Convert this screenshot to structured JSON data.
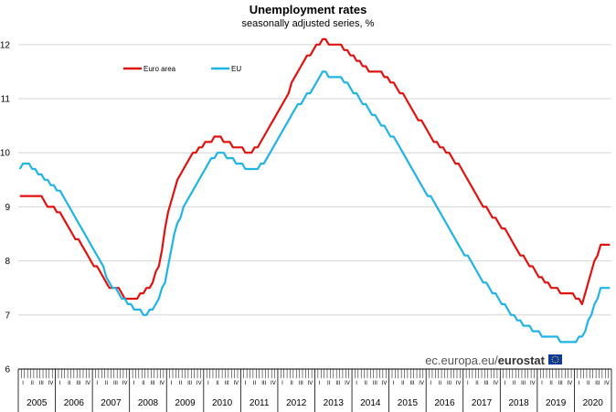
{
  "chart_data": {
    "type": "line",
    "title": "Unemployment rates",
    "subtitle": "seasonally adjusted series, %",
    "source": "ec.europa.eu/eurostat",
    "source_prefix": "ec.europa.eu/",
    "source_brand": "eurostat",
    "x_start": "2005-01",
    "frequency": "monthly",
    "ylim": [
      6,
      12.2
    ],
    "yticks": [
      6,
      7,
      8,
      9,
      10,
      11,
      12
    ],
    "years": [
      "2005",
      "2006",
      "2007",
      "2008",
      "2009",
      "2010",
      "2011",
      "2012",
      "2013",
      "2014",
      "2015",
      "2016",
      "2017",
      "2018",
      "2019",
      "2020"
    ],
    "quarter_labels": [
      "I",
      "II",
      "III",
      "IV"
    ],
    "grid": true,
    "legend_placement": "top-left",
    "series": [
      {
        "name": "Euro area",
        "color": "#e0120f",
        "keypoints": [
          [
            "2005-01",
            9.2
          ],
          [
            "2005-08",
            9.2
          ],
          [
            "2005-10",
            9.0
          ],
          [
            "2005-12",
            9.0
          ],
          [
            "2006-03",
            8.8
          ],
          [
            "2006-07",
            8.4
          ],
          [
            "2006-09",
            8.3
          ],
          [
            "2006-12",
            8.0
          ],
          [
            "2007-03",
            7.8
          ],
          [
            "2007-06",
            7.5
          ],
          [
            "2007-09",
            7.5
          ],
          [
            "2007-11",
            7.3
          ],
          [
            "2008-03",
            7.3
          ],
          [
            "2008-07",
            7.5
          ],
          [
            "2008-10",
            7.9
          ],
          [
            "2009-01",
            8.9
          ],
          [
            "2009-04",
            9.5
          ],
          [
            "2009-08",
            9.9
          ],
          [
            "2009-11",
            10.1
          ],
          [
            "2010-02",
            10.2
          ],
          [
            "2010-05",
            10.3
          ],
          [
            "2010-08",
            10.2
          ],
          [
            "2010-12",
            10.1
          ],
          [
            "2011-03",
            10.0
          ],
          [
            "2011-06",
            10.1
          ],
          [
            "2011-09",
            10.4
          ],
          [
            "2011-12",
            10.7
          ],
          [
            "2012-03",
            11.0
          ],
          [
            "2012-06",
            11.4
          ],
          [
            "2012-09",
            11.7
          ],
          [
            "2012-12",
            11.9
          ],
          [
            "2013-03",
            12.1
          ],
          [
            "2013-06",
            12.0
          ],
          [
            "2013-09",
            12.0
          ],
          [
            "2013-12",
            11.8
          ],
          [
            "2014-03",
            11.7
          ],
          [
            "2014-06",
            11.5
          ],
          [
            "2014-09",
            11.5
          ],
          [
            "2014-12",
            11.4
          ],
          [
            "2015-03",
            11.2
          ],
          [
            "2015-06",
            11.0
          ],
          [
            "2015-09",
            10.7
          ],
          [
            "2015-12",
            10.5
          ],
          [
            "2016-03",
            10.2
          ],
          [
            "2016-06",
            10.1
          ],
          [
            "2016-09",
            9.9
          ],
          [
            "2016-12",
            9.7
          ],
          [
            "2017-03",
            9.4
          ],
          [
            "2017-06",
            9.1
          ],
          [
            "2017-09",
            8.9
          ],
          [
            "2017-12",
            8.7
          ],
          [
            "2018-03",
            8.5
          ],
          [
            "2018-06",
            8.2
          ],
          [
            "2018-09",
            8.0
          ],
          [
            "2018-12",
            7.8
          ],
          [
            "2019-03",
            7.6
          ],
          [
            "2019-06",
            7.5
          ],
          [
            "2019-09",
            7.4
          ],
          [
            "2019-12",
            7.4
          ],
          [
            "2020-03",
            7.2
          ],
          [
            "2020-06",
            7.8
          ],
          [
            "2020-09",
            8.3
          ],
          [
            "2020-12",
            8.3
          ]
        ]
      },
      {
        "name": "EU",
        "color": "#1fb3e6",
        "keypoints": [
          [
            "2005-01",
            9.7
          ],
          [
            "2005-03",
            9.8
          ],
          [
            "2005-06",
            9.7
          ],
          [
            "2005-09",
            9.5
          ],
          [
            "2005-12",
            9.4
          ],
          [
            "2006-03",
            9.2
          ],
          [
            "2006-06",
            8.9
          ],
          [
            "2006-09",
            8.6
          ],
          [
            "2006-12",
            8.3
          ],
          [
            "2007-03",
            8.0
          ],
          [
            "2007-06",
            7.6
          ],
          [
            "2007-09",
            7.4
          ],
          [
            "2007-12",
            7.2
          ],
          [
            "2008-03",
            7.1
          ],
          [
            "2008-06",
            7.0
          ],
          [
            "2008-09",
            7.2
          ],
          [
            "2008-12",
            7.6
          ],
          [
            "2009-03",
            8.5
          ],
          [
            "2009-06",
            9.0
          ],
          [
            "2009-09",
            9.3
          ],
          [
            "2009-12",
            9.6
          ],
          [
            "2010-03",
            9.9
          ],
          [
            "2010-06",
            10.0
          ],
          [
            "2010-09",
            9.9
          ],
          [
            "2010-12",
            9.8
          ],
          [
            "2011-03",
            9.7
          ],
          [
            "2011-06",
            9.7
          ],
          [
            "2011-09",
            9.9
          ],
          [
            "2011-12",
            10.2
          ],
          [
            "2012-03",
            10.5
          ],
          [
            "2012-06",
            10.8
          ],
          [
            "2012-09",
            11.0
          ],
          [
            "2012-12",
            11.2
          ],
          [
            "2013-03",
            11.5
          ],
          [
            "2013-06",
            11.4
          ],
          [
            "2013-09",
            11.4
          ],
          [
            "2013-12",
            11.2
          ],
          [
            "2014-03",
            11.0
          ],
          [
            "2014-06",
            10.8
          ],
          [
            "2014-09",
            10.6
          ],
          [
            "2014-12",
            10.4
          ],
          [
            "2015-03",
            10.2
          ],
          [
            "2015-06",
            9.9
          ],
          [
            "2015-09",
            9.6
          ],
          [
            "2015-12",
            9.3
          ],
          [
            "2016-03",
            9.1
          ],
          [
            "2016-06",
            8.8
          ],
          [
            "2016-09",
            8.5
          ],
          [
            "2016-12",
            8.2
          ],
          [
            "2017-03",
            8.0
          ],
          [
            "2017-06",
            7.7
          ],
          [
            "2017-09",
            7.5
          ],
          [
            "2017-12",
            7.3
          ],
          [
            "2018-03",
            7.1
          ],
          [
            "2018-06",
            6.9
          ],
          [
            "2018-09",
            6.8
          ],
          [
            "2018-12",
            6.7
          ],
          [
            "2019-03",
            6.6
          ],
          [
            "2019-06",
            6.6
          ],
          [
            "2019-09",
            6.5
          ],
          [
            "2019-12",
            6.5
          ],
          [
            "2020-03",
            6.6
          ],
          [
            "2020-06",
            7.0
          ],
          [
            "2020-09",
            7.5
          ],
          [
            "2020-12",
            7.5
          ]
        ]
      }
    ]
  }
}
